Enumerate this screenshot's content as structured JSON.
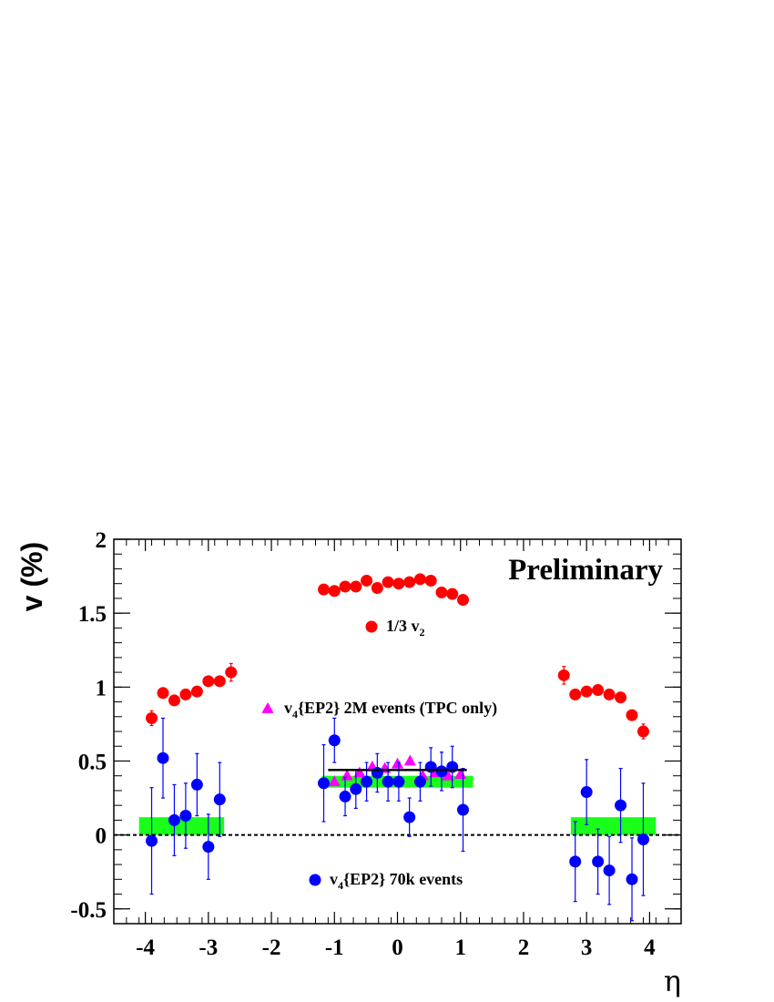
{
  "chart_data": {
    "type": "scatter",
    "title": "",
    "xlabel": "η",
    "ylabel": "v (%)",
    "xlim": [
      -4.5,
      4.5
    ],
    "ylim": [
      -0.6,
      2.0
    ],
    "xticks": [
      -4,
      -3,
      -2,
      -1,
      0,
      1,
      2,
      3,
      4
    ],
    "yticks": [
      -0.5,
      0,
      0.5,
      1,
      1.5,
      2
    ],
    "xtick_labels": [
      "-4",
      "-3",
      "-2",
      "-1",
      "0",
      "1",
      "2",
      "3",
      "4"
    ],
    "ytick_labels": [
      "-0.5",
      "0",
      "0.5",
      "1",
      "1.5",
      "2"
    ],
    "annotation": "Preliminary",
    "series": [
      {
        "name": "1/3 v_2",
        "legend_main": "1/3 v",
        "legend_sub": "2",
        "legend_suffix": "",
        "marker": "circle",
        "color": "#ff0000",
        "x": [
          -3.9,
          -3.72,
          -3.54,
          -3.36,
          -3.18,
          -3.0,
          -2.82,
          -2.64,
          -1.17,
          -1.0,
          -0.83,
          -0.66,
          -0.49,
          -0.32,
          -0.15,
          0.02,
          0.19,
          0.36,
          0.53,
          0.7,
          0.87,
          1.04,
          2.64,
          2.82,
          3.0,
          3.18,
          3.36,
          3.54,
          3.72,
          3.9
        ],
        "y": [
          0.79,
          0.96,
          0.91,
          0.95,
          0.97,
          1.04,
          1.04,
          1.1,
          1.66,
          1.65,
          1.68,
          1.68,
          1.72,
          1.67,
          1.71,
          1.7,
          1.71,
          1.73,
          1.72,
          1.64,
          1.63,
          1.59,
          1.08,
          0.95,
          0.97,
          0.98,
          0.95,
          0.93,
          0.81,
          0.7
        ],
        "err": [
          0.05,
          0.03,
          0.03,
          0.03,
          0.03,
          0.03,
          0.03,
          0.06,
          0.02,
          0.02,
          0.02,
          0.02,
          0.02,
          0.02,
          0.02,
          0.02,
          0.02,
          0.02,
          0.02,
          0.02,
          0.02,
          0.03,
          0.06,
          0.03,
          0.03,
          0.03,
          0.03,
          0.03,
          0.03,
          0.05
        ]
      },
      {
        "name": "v_4{EP2} 2M events (TPC only)",
        "legend_main": "v",
        "legend_sub": "4",
        "legend_suffix": "{EP2} 2M events (TPC only)",
        "marker": "triangle",
        "color": "#ff00ff",
        "x": [
          -1.0,
          -0.8,
          -0.6,
          -0.4,
          -0.2,
          0.0,
          0.2,
          0.4,
          0.6,
          0.8,
          1.0
        ],
        "y": [
          0.36,
          0.4,
          0.42,
          0.46,
          0.45,
          0.48,
          0.5,
          0.4,
          0.42,
          0.4,
          0.41
        ],
        "err": [
          0.01,
          0.01,
          0.01,
          0.01,
          0.01,
          0.01,
          0.01,
          0.01,
          0.01,
          0.01,
          0.01
        ]
      },
      {
        "name": "v_4{EP2} 70k events",
        "legend_main": "v",
        "legend_sub": "4",
        "legend_suffix": "{EP2} 70k events",
        "marker": "circle",
        "color": "#0000ff",
        "x": [
          -3.9,
          -3.72,
          -3.54,
          -3.36,
          -3.18,
          -3.0,
          -2.82,
          -1.17,
          -1.0,
          -0.83,
          -0.66,
          -0.49,
          -0.32,
          -0.15,
          0.02,
          0.19,
          0.36,
          0.53,
          0.7,
          0.87,
          1.04,
          2.82,
          3.0,
          3.18,
          3.36,
          3.54,
          3.72,
          3.9
        ],
        "y": [
          -0.04,
          0.52,
          0.1,
          0.13,
          0.34,
          -0.08,
          0.24,
          0.35,
          0.64,
          0.26,
          0.31,
          0.36,
          0.42,
          0.36,
          0.36,
          0.12,
          0.36,
          0.46,
          0.43,
          0.46,
          0.17,
          -0.18,
          0.29,
          -0.18,
          -0.24,
          0.2,
          -0.3,
          -0.03
        ],
        "err": [
          0.36,
          0.27,
          0.24,
          0.22,
          0.21,
          0.22,
          0.25,
          0.26,
          0.15,
          0.13,
          0.13,
          0.13,
          0.13,
          0.13,
          0.13,
          0.13,
          0.13,
          0.13,
          0.13,
          0.14,
          0.28,
          0.27,
          0.22,
          0.22,
          0.23,
          0.25,
          0.28,
          0.38
        ]
      }
    ],
    "reference_line": {
      "y": 0,
      "style": "dashed"
    },
    "fit_line": {
      "x": [
        -1.1,
        1.1
      ],
      "y": 0.44,
      "color": "#000000"
    },
    "systematic_bands": [
      {
        "x": [
          -4.1,
          -2.75
        ],
        "y": [
          0.0,
          0.12
        ],
        "color": "#00ff00"
      },
      {
        "x": [
          -1.2,
          1.2
        ],
        "y": [
          0.32,
          0.4
        ],
        "color": "#00ff00"
      },
      {
        "x": [
          2.75,
          4.1
        ],
        "y": [
          0.0,
          0.12
        ],
        "color": "#00ff00"
      }
    ]
  }
}
